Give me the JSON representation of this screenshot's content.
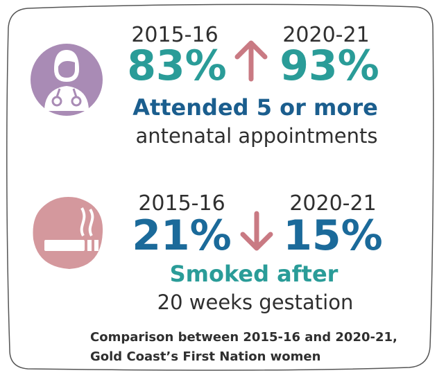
{
  "stats": [
    {
      "year_from": "2015-16",
      "value_from": "83%",
      "year_to": "2020-21",
      "value_to": "93%",
      "headline": "Attended 5 or more",
      "subline": "antenatal appointments"
    },
    {
      "year_from": "2015-16",
      "value_from": "21%",
      "year_to": "2020-21",
      "value_to": "15%",
      "headline": "Smoked after",
      "subline": "20 weeks gestation"
    }
  ],
  "footnote": [
    "Comparison between 2015-16 and 2020-21,",
    "Gold Coast’s First Nation women"
  ]
}
